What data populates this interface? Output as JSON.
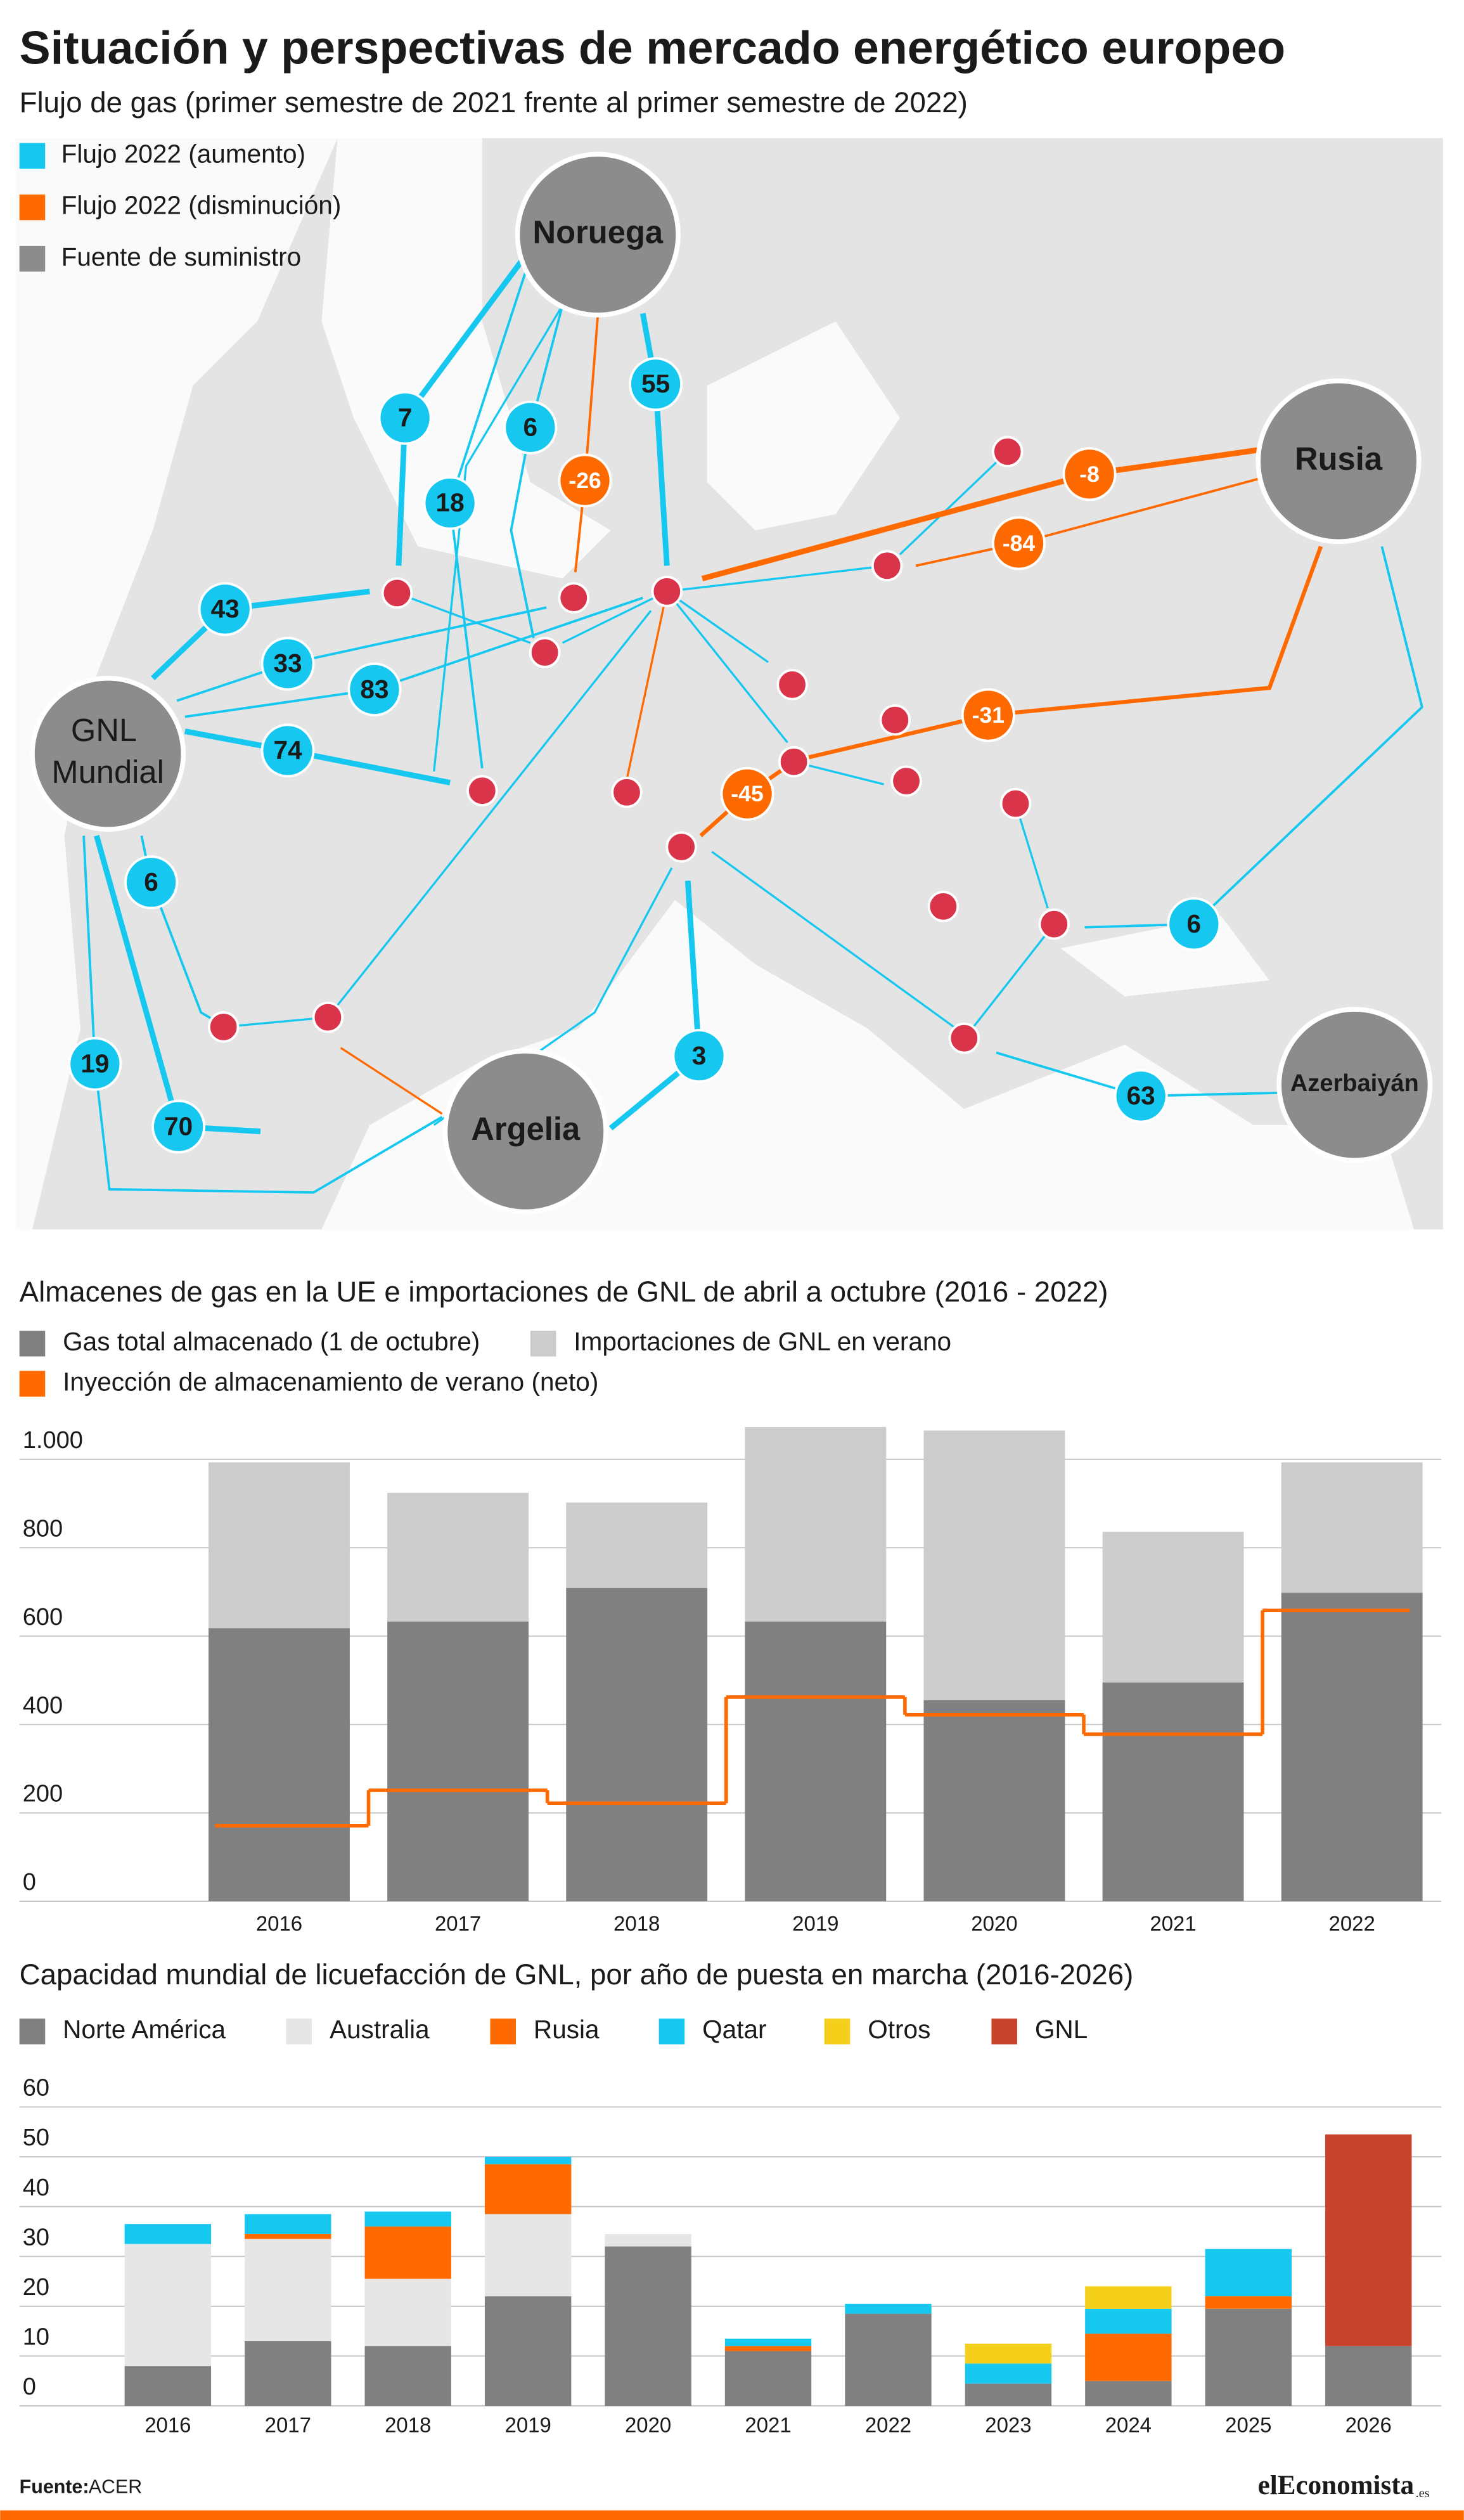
{
  "header": {
    "title": "Situación y perspectivas de mercado energético europeo",
    "subtitle": "Flujo de gas (primer semestre de 2021 frente al primer semestre de 2022)"
  },
  "map": {
    "legend": [
      {
        "name": "Flujo 2022 (aumento)",
        "color": "#16c8f0"
      },
      {
        "name": "Flujo 2022 (disminución)",
        "color": "#ff6a00"
      },
      {
        "name": "Fuente de suministro",
        "color": "#8c8c8c"
      }
    ],
    "sources": [
      "Noruega",
      "Rusia",
      "GNL Mundial",
      "Argelia",
      "Azerbaiyán"
    ],
    "flows": [
      {
        "value": 7,
        "color": "#16c8f0"
      },
      {
        "value": 6,
        "color": "#16c8f0"
      },
      {
        "value": 18,
        "color": "#16c8f0"
      },
      {
        "value": 55,
        "color": "#16c8f0"
      },
      {
        "value": -26,
        "color": "#ff6a00"
      },
      {
        "value": -8,
        "color": "#ff6a00"
      },
      {
        "value": -84,
        "color": "#ff6a00"
      },
      {
        "value": 43,
        "color": "#16c8f0"
      },
      {
        "value": 33,
        "color": "#16c8f0"
      },
      {
        "value": 83,
        "color": "#16c8f0"
      },
      {
        "value": 74,
        "color": "#16c8f0"
      },
      {
        "value": -31,
        "color": "#ff6a00"
      },
      {
        "value": -45,
        "color": "#ff6a00"
      },
      {
        "value": 6,
        "color": "#16c8f0"
      },
      {
        "value": 6,
        "color": "#16c8f0"
      },
      {
        "value": 19,
        "color": "#16c8f0"
      },
      {
        "value": 70,
        "color": "#16c8f0"
      },
      {
        "value": 3,
        "color": "#16c8f0"
      },
      {
        "value": 63,
        "color": "#16c8f0"
      }
    ]
  },
  "chart_data": [
    {
      "type": "bar",
      "stacked": true,
      "grid": true,
      "title": "Almacenes de gas en la UE e importaciones de GNL de abril a octubre (2016 - 2022)",
      "categories": [
        "2016",
        "2017",
        "2018",
        "2019",
        "2020",
        "2021",
        "2022"
      ],
      "series": [
        {
          "name": "Gas total almacenado (1 de octubre)",
          "color": "#808080",
          "values": [
            618,
            633,
            709,
            633,
            455,
            495,
            698
          ]
        },
        {
          "name": "Importaciones de GNL en verano",
          "color": "#cccccc",
          "values": [
            375,
            291,
            193,
            440,
            610,
            341,
            295
          ]
        },
        {
          "name": "Inyección de almacenamiento de verano (neto)",
          "color": "#ff6a00",
          "type": "step",
          "values": [
            171,
            251,
            222,
            462,
            422,
            378,
            658
          ]
        }
      ],
      "ylim": [
        0,
        1100
      ],
      "yticks": [
        0,
        200,
        400,
        600,
        800,
        {
          "value": 1000,
          "label": "1.000"
        }
      ]
    },
    {
      "type": "bar",
      "stacked": true,
      "grid": true,
      "title": "Capacidad mundial de licuefacción de GNL, por año de puesta en marcha (2016-2026)",
      "categories": [
        "2016",
        "2017",
        "2018",
        "2019",
        "2020",
        "2021",
        "2022",
        "2023",
        "2024",
        "2025",
        "2026"
      ],
      "series": [
        {
          "name": "Norte América",
          "color": "#808080",
          "values": [
            8,
            13,
            12,
            22,
            32,
            11,
            18.5,
            4.5,
            5,
            19.5,
            12
          ]
        },
        {
          "name": "Australia",
          "color": "#e6e6e6",
          "values": [
            24.5,
            20.5,
            13.5,
            16.5,
            2.5,
            0,
            0,
            0,
            0,
            0,
            0
          ]
        },
        {
          "name": "Rusia",
          "color": "#ff6a00",
          "values": [
            0,
            1,
            10.5,
            10,
            0,
            1,
            0,
            0,
            9.5,
            2.5,
            0
          ]
        },
        {
          "name": "Qatar",
          "color": "#16c8f0",
          "values": [
            4,
            4,
            3,
            1.5,
            0,
            1.5,
            2,
            4,
            5,
            9.5,
            0
          ]
        },
        {
          "name": "Otros",
          "color": "#f5d01a",
          "values": [
            0,
            0,
            0,
            0,
            0,
            0,
            0,
            4,
            4.5,
            0,
            0
          ]
        },
        {
          "name": "GNL",
          "color": "#c8432c",
          "values": [
            0,
            0,
            0,
            0,
            0,
            0,
            0,
            0,
            0,
            0,
            42.5
          ]
        }
      ],
      "ylim": [
        0,
        60
      ],
      "yticks": [
        0,
        10,
        20,
        30,
        40,
        50,
        60
      ]
    }
  ],
  "footer": {
    "source_label": "Fuente:",
    "source": "ACER",
    "logo": "elEconomista",
    "logo_suffix": ".es"
  }
}
